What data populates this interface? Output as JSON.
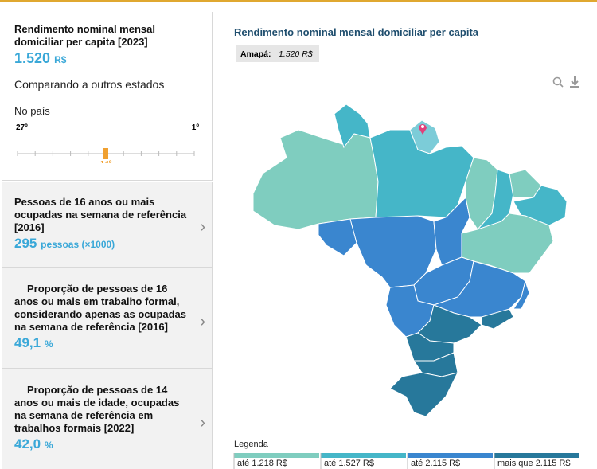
{
  "sidebar": {
    "main": {
      "title": "Rendimento nominal mensal domiciliar per capita [2023]",
      "value": "1.520",
      "unit": "R$",
      "compare_label": "Comparando a outros estados",
      "scope_label": "No país",
      "rank": {
        "start": {
          "value": 27,
          "label": "27º"
        },
        "end": {
          "value": 1,
          "label": "1º"
        },
        "position": {
          "value": 14,
          "label": "14º"
        }
      }
    },
    "cards": [
      {
        "title": "Pessoas de 16 anos ou mais ocupadas na semana de referência [2016]",
        "value": "295",
        "unit": "pessoas (×1000)"
      },
      {
        "title": "Proporção de pessoas de 16 anos ou mais em trabalho formal, considerando apenas as ocupadas na semana de referência [2016]",
        "value": "49,1",
        "unit": "%"
      },
      {
        "title": "Proporção de pessoas de 14 anos ou mais de idade, ocupadas na semana de referência em trabalhos formais [2022]",
        "value": "42,0",
        "unit": "%"
      }
    ]
  },
  "map": {
    "title": "Rendimento nominal mensal domiciliar per capita",
    "tooltip": {
      "label": "Amapá:",
      "value": "1.520 R$"
    },
    "legend": {
      "title": "Legenda",
      "items": [
        {
          "label": "até 1.218 R$",
          "color": "#7fcdbf"
        },
        {
          "label": "até 1.527 R$",
          "color": "#45b6c8"
        },
        {
          "label": "até 2.115 R$",
          "color": "#3a86cf"
        },
        {
          "label": "mais que 2.115 R$",
          "color": "#27789b"
        }
      ]
    }
  }
}
